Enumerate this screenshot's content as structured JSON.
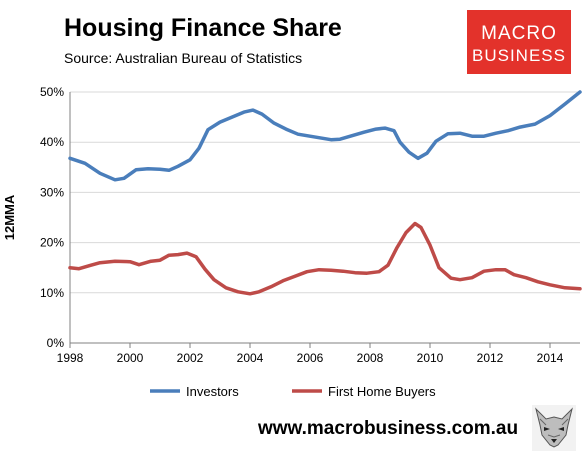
{
  "header": {
    "title": "Housing Finance Share",
    "subtitle": "Source: Australian Bureau of Statistics"
  },
  "logo": {
    "line1": "MACRO",
    "line2": "BUSINESS",
    "bg": "#e3322b"
  },
  "footer": {
    "url": "www.macrobusiness.com.au",
    "fox_icon": "fox-logo-icon"
  },
  "chart_data": {
    "type": "line",
    "title": "Housing Finance Share",
    "subtitle": "Source: Australian Bureau of Statistics",
    "xlabel": "",
    "ylabel": "12MMA",
    "xlim": [
      1998,
      2015
    ],
    "ylim": [
      0,
      50
    ],
    "x_ticks": [
      1998,
      2000,
      2002,
      2004,
      2006,
      2008,
      2010,
      2012,
      2014
    ],
    "y_ticks": [
      0,
      10,
      20,
      30,
      40,
      50
    ],
    "y_tick_labels": [
      "0%",
      "10%",
      "20%",
      "30%",
      "40%",
      "50%"
    ],
    "grid": true,
    "legend": "bottom",
    "series": [
      {
        "name": "Investors",
        "color": "#4a7ebb",
        "points": [
          [
            1998.0,
            36.8
          ],
          [
            1998.5,
            35.8
          ],
          [
            1999.0,
            33.8
          ],
          [
            1999.5,
            32.5
          ],
          [
            1999.8,
            32.8
          ],
          [
            2000.2,
            34.5
          ],
          [
            2000.6,
            34.7
          ],
          [
            2001.0,
            34.6
          ],
          [
            2001.3,
            34.4
          ],
          [
            2001.6,
            35.2
          ],
          [
            2002.0,
            36.5
          ],
          [
            2002.3,
            38.8
          ],
          [
            2002.6,
            42.5
          ],
          [
            2003.0,
            44.0
          ],
          [
            2003.4,
            45.0
          ],
          [
            2003.8,
            46.0
          ],
          [
            2004.1,
            46.4
          ],
          [
            2004.4,
            45.6
          ],
          [
            2004.8,
            43.8
          ],
          [
            2005.2,
            42.6
          ],
          [
            2005.6,
            41.6
          ],
          [
            2006.0,
            41.2
          ],
          [
            2006.3,
            40.9
          ],
          [
            2006.7,
            40.5
          ],
          [
            2007.0,
            40.6
          ],
          [
            2007.4,
            41.3
          ],
          [
            2007.8,
            42.0
          ],
          [
            2008.2,
            42.6
          ],
          [
            2008.5,
            42.8
          ],
          [
            2008.8,
            42.3
          ],
          [
            2009.0,
            40.0
          ],
          [
            2009.3,
            38.0
          ],
          [
            2009.6,
            36.8
          ],
          [
            2009.9,
            37.8
          ],
          [
            2010.2,
            40.2
          ],
          [
            2010.6,
            41.7
          ],
          [
            2011.0,
            41.8
          ],
          [
            2011.4,
            41.2
          ],
          [
            2011.8,
            41.2
          ],
          [
            2012.2,
            41.8
          ],
          [
            2012.6,
            42.3
          ],
          [
            2013.0,
            43.0
          ],
          [
            2013.5,
            43.6
          ],
          [
            2014.0,
            45.3
          ],
          [
            2014.5,
            47.6
          ],
          [
            2015.0,
            50.0
          ]
        ]
      },
      {
        "name": "First Home Buyers",
        "color": "#be4b48",
        "points": [
          [
            1998.0,
            15.0
          ],
          [
            1998.3,
            14.8
          ],
          [
            1998.7,
            15.5
          ],
          [
            1999.0,
            16.0
          ],
          [
            1999.5,
            16.3
          ],
          [
            2000.0,
            16.2
          ],
          [
            2000.3,
            15.6
          ],
          [
            2000.7,
            16.3
          ],
          [
            2001.0,
            16.5
          ],
          [
            2001.3,
            17.5
          ],
          [
            2001.6,
            17.6
          ],
          [
            2001.9,
            17.9
          ],
          [
            2002.2,
            17.2
          ],
          [
            2002.5,
            14.7
          ],
          [
            2002.8,
            12.6
          ],
          [
            2003.2,
            11.0
          ],
          [
            2003.6,
            10.2
          ],
          [
            2004.0,
            9.8
          ],
          [
            2004.3,
            10.2
          ],
          [
            2004.7,
            11.2
          ],
          [
            2005.1,
            12.4
          ],
          [
            2005.5,
            13.3
          ],
          [
            2005.9,
            14.2
          ],
          [
            2006.3,
            14.6
          ],
          [
            2006.7,
            14.5
          ],
          [
            2007.1,
            14.3
          ],
          [
            2007.5,
            14.0
          ],
          [
            2007.9,
            13.9
          ],
          [
            2008.3,
            14.2
          ],
          [
            2008.6,
            15.5
          ],
          [
            2008.9,
            19.0
          ],
          [
            2009.2,
            22.0
          ],
          [
            2009.5,
            23.8
          ],
          [
            2009.7,
            23.0
          ],
          [
            2010.0,
            19.5
          ],
          [
            2010.3,
            15.0
          ],
          [
            2010.7,
            12.9
          ],
          [
            2011.0,
            12.6
          ],
          [
            2011.4,
            13.0
          ],
          [
            2011.8,
            14.3
          ],
          [
            2012.2,
            14.6
          ],
          [
            2012.5,
            14.6
          ],
          [
            2012.8,
            13.6
          ],
          [
            2013.2,
            13.0
          ],
          [
            2013.6,
            12.2
          ],
          [
            2014.0,
            11.6
          ],
          [
            2014.5,
            11.0
          ],
          [
            2015.0,
            10.8
          ]
        ]
      }
    ]
  }
}
